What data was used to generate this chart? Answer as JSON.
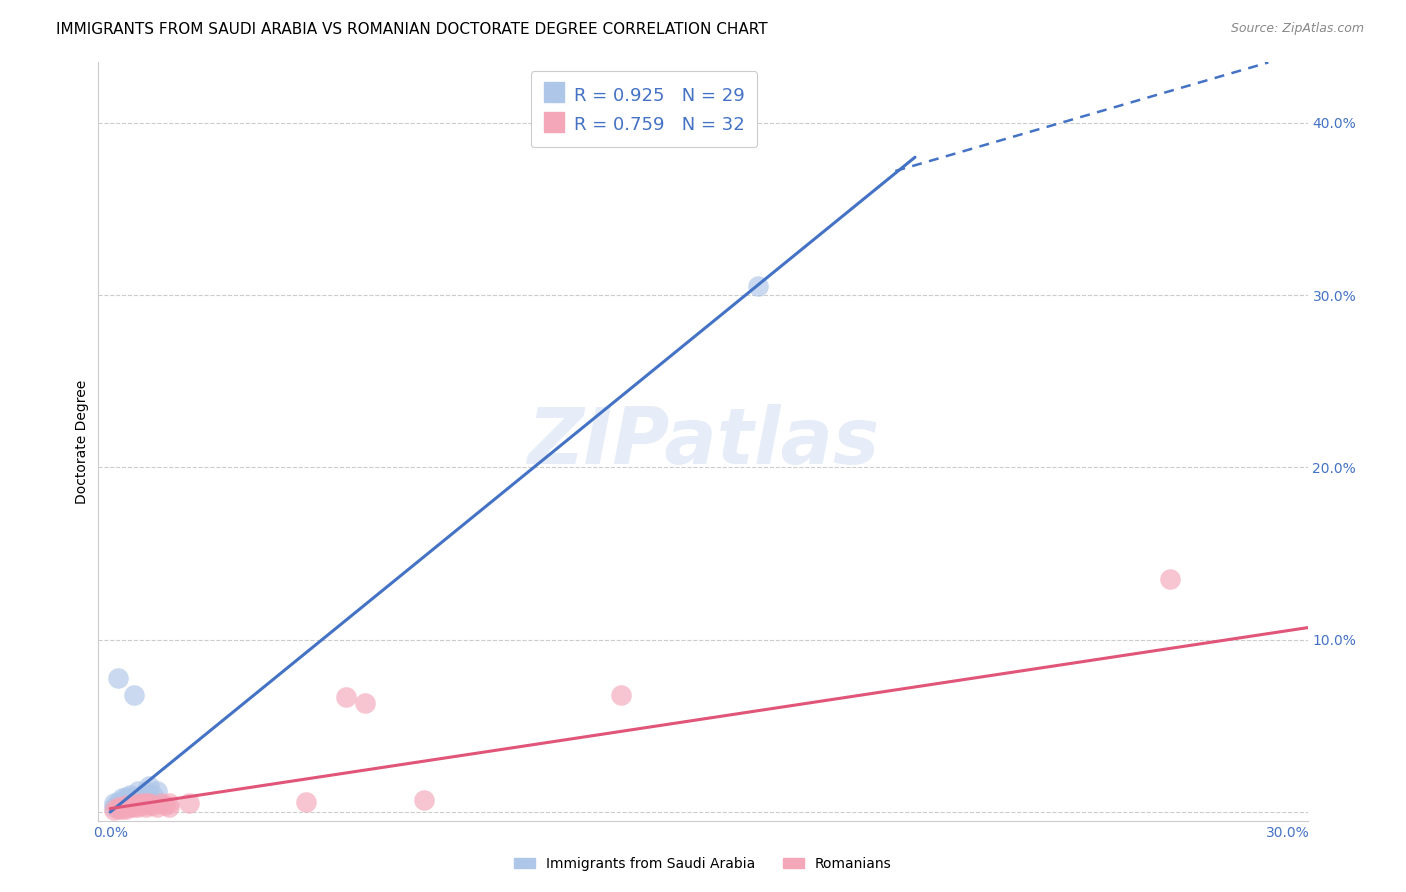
{
  "title": "IMMIGRANTS FROM SAUDI ARABIA VS ROMANIAN DOCTORATE DEGREE CORRELATION CHART",
  "source": "Source: ZipAtlas.com",
  "ylabel": "Doctorate Degree",
  "xlim": [
    -0.003,
    0.305
  ],
  "ylim": [
    -0.005,
    0.435
  ],
  "xticks": [
    0.0,
    0.1,
    0.2,
    0.3
  ],
  "xtick_labels_show": [
    "0.0%",
    "",
    "",
    "30.0%"
  ],
  "yticks": [
    0.0,
    0.1,
    0.2,
    0.3,
    0.4
  ],
  "ytick_labels_right": [
    "",
    "10.0%",
    "20.0%",
    "30.0%",
    "40.0%"
  ],
  "watermark": "ZIPatlas",
  "legend_entries": [
    {
      "label": "Immigrants from Saudi Arabia",
      "color": "#aec6e8",
      "R": "0.925",
      "N": "29"
    },
    {
      "label": "Romanians",
      "color": "#f4a7b9",
      "R": "0.759",
      "N": "32"
    }
  ],
  "saudi_points": [
    [
      0.001,
      0.003
    ],
    [
      0.001,
      0.005
    ],
    [
      0.002,
      0.003
    ],
    [
      0.002,
      0.004
    ],
    [
      0.002,
      0.006
    ],
    [
      0.003,
      0.004
    ],
    [
      0.003,
      0.006
    ],
    [
      0.003,
      0.008
    ],
    [
      0.004,
      0.005
    ],
    [
      0.004,
      0.007
    ],
    [
      0.004,
      0.009
    ],
    [
      0.005,
      0.006
    ],
    [
      0.005,
      0.008
    ],
    [
      0.005,
      0.01
    ],
    [
      0.006,
      0.007
    ],
    [
      0.006,
      0.009
    ],
    [
      0.007,
      0.008
    ],
    [
      0.007,
      0.012
    ],
    [
      0.008,
      0.008
    ],
    [
      0.008,
      0.01
    ],
    [
      0.009,
      0.009
    ],
    [
      0.009,
      0.012
    ],
    [
      0.01,
      0.01
    ],
    [
      0.01,
      0.015
    ],
    [
      0.011,
      0.01
    ],
    [
      0.012,
      0.012
    ],
    [
      0.002,
      0.078
    ],
    [
      0.006,
      0.068
    ],
    [
      0.165,
      0.305
    ]
  ],
  "romanian_points": [
    [
      0.001,
      0.001
    ],
    [
      0.002,
      0.002
    ],
    [
      0.002,
      0.003
    ],
    [
      0.003,
      0.002
    ],
    [
      0.003,
      0.003
    ],
    [
      0.004,
      0.002
    ],
    [
      0.004,
      0.004
    ],
    [
      0.005,
      0.003
    ],
    [
      0.005,
      0.004
    ],
    [
      0.006,
      0.003
    ],
    [
      0.006,
      0.005
    ],
    [
      0.007,
      0.003
    ],
    [
      0.007,
      0.004
    ],
    [
      0.008,
      0.004
    ],
    [
      0.008,
      0.005
    ],
    [
      0.009,
      0.003
    ],
    [
      0.009,
      0.005
    ],
    [
      0.01,
      0.004
    ],
    [
      0.01,
      0.005
    ],
    [
      0.011,
      0.004
    ],
    [
      0.012,
      0.003
    ],
    [
      0.013,
      0.005
    ],
    [
      0.014,
      0.004
    ],
    [
      0.015,
      0.003
    ],
    [
      0.015,
      0.005
    ],
    [
      0.02,
      0.005
    ],
    [
      0.05,
      0.006
    ],
    [
      0.06,
      0.067
    ],
    [
      0.065,
      0.063
    ],
    [
      0.08,
      0.007
    ],
    [
      0.13,
      0.068
    ],
    [
      0.27,
      0.135
    ]
  ],
  "saudi_line_solid": {
    "x0": 0.0,
    "y0": 0.0,
    "x1": 0.205,
    "y1": 0.38
  },
  "saudi_line_dashed": {
    "x0": 0.2,
    "y0": 0.372,
    "x1": 0.295,
    "y1": 0.435
  },
  "romanian_line": {
    "x0": 0.0,
    "y0": 0.002,
    "x1": 0.305,
    "y1": 0.107
  },
  "blue_color": "#4472c4",
  "pink_color": "#e05578",
  "scatter_blue": "#aec6e8",
  "scatter_pink": "#f4a7b9",
  "grid_color": "#cccccc",
  "background_color": "#ffffff"
}
